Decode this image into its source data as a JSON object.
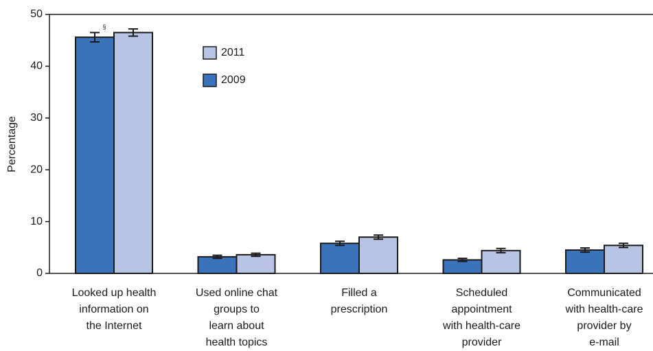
{
  "chart_data": {
    "type": "bar",
    "y_label": "Percentage",
    "annotation": "§",
    "categories": [
      [
        "Looked up health",
        "information on",
        "the Internet"
      ],
      [
        "Used online chat",
        "groups to",
        "learn about",
        "health topics"
      ],
      [
        "Filled a",
        "prescription"
      ],
      [
        "Scheduled",
        "appointment",
        "with health-care",
        "provider"
      ],
      [
        "Communicated",
        "with health-care",
        "provider by",
        "e-mail"
      ]
    ],
    "series": [
      {
        "name": "2009",
        "color": "#3a73b9",
        "values": [
          45.6,
          3.2,
          5.8,
          2.6,
          4.5
        ],
        "errors": [
          0.9,
          0.3,
          0.4,
          0.3,
          0.4
        ]
      },
      {
        "name": "2011",
        "color": "#b8c4e4",
        "values": [
          46.5,
          3.6,
          7.0,
          4.4,
          5.4
        ],
        "errors": [
          0.7,
          0.3,
          0.4,
          0.4,
          0.4
        ]
      }
    ],
    "ylim": [
      0,
      50
    ],
    "yticks": [
      0,
      10,
      20,
      30,
      40,
      50
    ]
  }
}
